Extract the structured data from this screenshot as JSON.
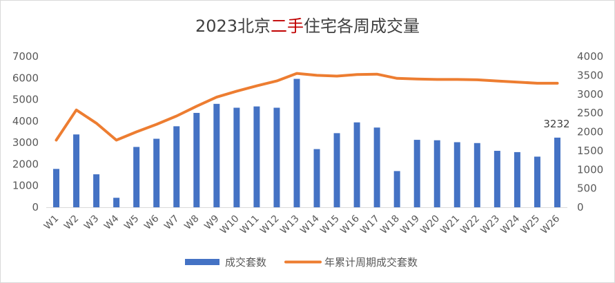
{
  "chart_data": {
    "type": "bar",
    "title_parts": [
      "2023北京",
      "二手",
      "住宅各周成交量"
    ],
    "colors": {
      "bar": "#4472C4",
      "line": "#ED7D31",
      "title_accent": "#C00000",
      "title": "#404040",
      "axis_text": "#595959",
      "axis_line": "#D9D9D9"
    },
    "categories": [
      "W1",
      "W2",
      "W3",
      "W4",
      "W5",
      "W6",
      "W7",
      "W8",
      "W9",
      "W10",
      "W11",
      "W12",
      "W13",
      "W14",
      "W15",
      "W16",
      "W17",
      "W18",
      "W19",
      "W20",
      "W21",
      "W22",
      "W23",
      "W24",
      "W25",
      "W26"
    ],
    "y_left": {
      "min": 0,
      "max": 7000,
      "step": 1000,
      "ticks": [
        "0",
        "1000",
        "2000",
        "3000",
        "4000",
        "5000",
        "6000",
        "7000"
      ]
    },
    "y_right": {
      "min": 0,
      "max": 4000,
      "step": 500,
      "ticks": [
        "0",
        "500",
        "1000",
        "1500",
        "2000",
        "2500",
        "3000",
        "3500",
        "4000"
      ]
    },
    "series": [
      {
        "name": "成交套数",
        "type": "bar",
        "axis": "left",
        "values": [
          1780,
          3380,
          1530,
          440,
          2800,
          3180,
          3760,
          4380,
          4800,
          4620,
          4680,
          4620,
          5960,
          2700,
          3440,
          3940,
          3700,
          1680,
          3130,
          3110,
          3020,
          2980,
          2620,
          2560,
          2350,
          3232
        ]
      },
      {
        "name": "年累计周期成交套数",
        "type": "line",
        "axis": "right",
        "values": [
          1780,
          2580,
          2230,
          1780,
          2000,
          2200,
          2420,
          2680,
          2920,
          3080,
          3220,
          3350,
          3550,
          3500,
          3480,
          3520,
          3530,
          3420,
          3400,
          3390,
          3390,
          3380,
          3350,
          3320,
          3290,
          3290
        ]
      }
    ],
    "data_labels": [
      {
        "category": "W26",
        "text": "3232"
      }
    ],
    "legend": {
      "position": "bottom"
    }
  }
}
